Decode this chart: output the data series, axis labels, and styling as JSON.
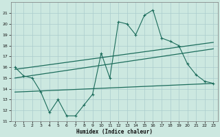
{
  "xlabel": "Humidex (Indice chaleur)",
  "background_color": "#cce8e0",
  "grid_color": "#aacccc",
  "line_color": "#1a6b5a",
  "x": [
    0,
    1,
    2,
    3,
    4,
    5,
    6,
    7,
    8,
    9,
    10,
    11,
    12,
    13,
    14,
    15,
    16,
    17,
    18,
    19,
    20,
    21,
    22,
    23
  ],
  "line1": [
    16.0,
    15.2,
    15.0,
    13.7,
    11.8,
    13.0,
    11.5,
    11.5,
    12.5,
    13.5,
    17.3,
    15.0,
    20.2,
    20.0,
    19.0,
    20.8,
    21.3,
    18.7,
    18.4,
    18.0,
    16.3,
    15.3,
    14.7,
    14.5
  ],
  "trend1_x": [
    0,
    23
  ],
  "trend1_y": [
    15.8,
    18.3
  ],
  "trend2_x": [
    0,
    23
  ],
  "trend2_y": [
    15.0,
    17.7
  ],
  "trend3_x": [
    0,
    23
  ],
  "trend3_y": [
    13.7,
    14.5
  ],
  "ylim": [
    11,
    22
  ],
  "xlim": [
    -0.5,
    23.5
  ],
  "yticks": [
    11,
    12,
    13,
    14,
    15,
    16,
    17,
    18,
    19,
    20,
    21
  ],
  "xticks": [
    0,
    1,
    2,
    3,
    4,
    5,
    6,
    7,
    8,
    9,
    10,
    11,
    12,
    13,
    14,
    15,
    16,
    17,
    18,
    19,
    20,
    21,
    22,
    23
  ]
}
